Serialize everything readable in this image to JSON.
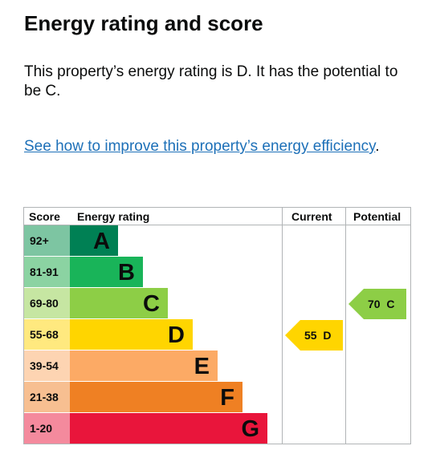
{
  "heading": "Energy rating and score",
  "intro": "This property’s energy rating is D. It has the potential to be C.",
  "link": {
    "text": "See how to improve this property’s energy efficiency",
    "suffix": "."
  },
  "chart": {
    "headers": {
      "score": "Score",
      "rating": "Energy rating",
      "current": "Current",
      "potential": "Potential"
    },
    "bands": [
      {
        "range": "92+",
        "letter": "A",
        "color": "#008054",
        "score_bg": "#7dc5a2"
      },
      {
        "range": "81-91",
        "letter": "B",
        "color": "#19b459",
        "score_bg": "#8bd3a2"
      },
      {
        "range": "69-80",
        "letter": "C",
        "color": "#8dce46",
        "score_bg": "#c6e6a2"
      },
      {
        "range": "55-68",
        "letter": "D",
        "color": "#ffd500",
        "score_bg": "#ffe97f"
      },
      {
        "range": "39-54",
        "letter": "E",
        "color": "#fcaa65",
        "score_bg": "#fdd4b2"
      },
      {
        "range": "21-38",
        "letter": "F",
        "color": "#ef8023",
        "score_bg": "#f7bf91"
      },
      {
        "range": "1-20",
        "letter": "G",
        "color": "#e9153b",
        "score_bg": "#f48a9d"
      }
    ],
    "current": {
      "score": "55",
      "letter": "D",
      "label": "55  D",
      "color": "#ffd500"
    },
    "potential": {
      "score": "70",
      "letter": "C",
      "label": "70  C",
      "color": "#8dce46"
    }
  }
}
